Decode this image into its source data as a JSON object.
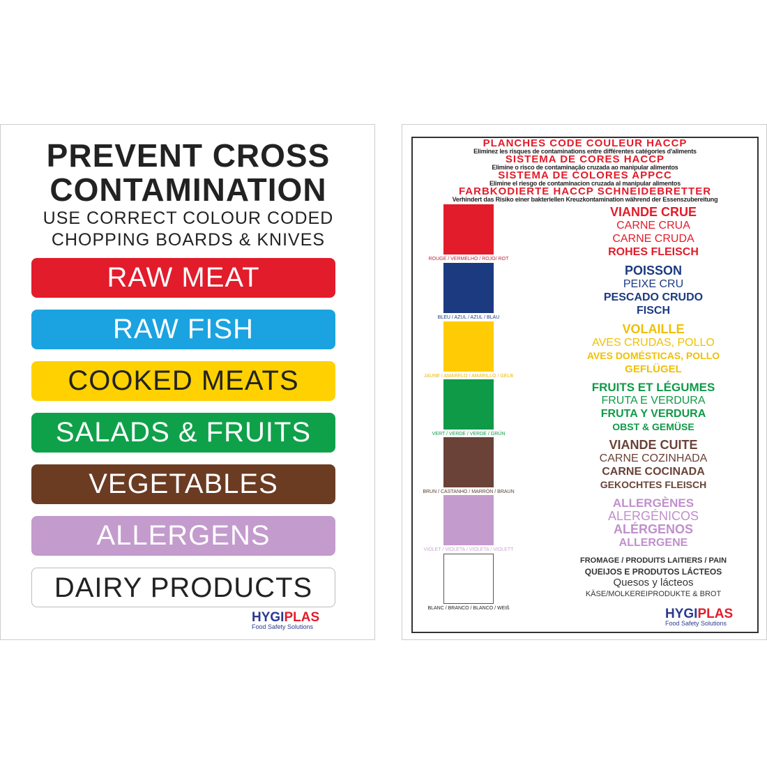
{
  "left": {
    "title_lines": [
      "PREVENT CROSS",
      "CONTAMINATION"
    ],
    "subtitle_lines": [
      "USE CORRECT COLOUR CODED",
      "CHOPPING BOARDS & KNIVES"
    ],
    "bars": [
      {
        "label": "RAW MEAT",
        "color": "#e21c2a",
        "text_color": "#ffffff"
      },
      {
        "label": "RAW FISH",
        "color": "#1aa3e0",
        "text_color": "#ffffff"
      },
      {
        "label": "COOKED MEATS",
        "color": "#ffd100",
        "text_color": "#222222"
      },
      {
        "label": "SALADS & FRUITS",
        "color": "#0fa14a",
        "text_color": "#ffffff"
      },
      {
        "label": "VEGETABLES",
        "color": "#6b3b22",
        "text_color": "#ffffff"
      },
      {
        "label": "ALLERGENS",
        "color": "#c39bcd",
        "text_color": "#ffffff"
      },
      {
        "label": "DAIRY PRODUCTS",
        "color": "#ffffff",
        "text_color": "#222222"
      }
    ],
    "logo": {
      "a": "HYGI",
      "b": "PLAS",
      "tagline": "Food Safety Solutions"
    }
  },
  "right": {
    "headers": [
      {
        "title": "PLANCHES CODE COULEUR HACCP",
        "sub": "Eliminez les risques de contaminations entre différentes catégories d'aliments"
      },
      {
        "title": "SISTEMA DE CORES HACCP",
        "sub": "Elimine o risco de contaminação cruzada ao manipular alimentos"
      },
      {
        "title": "SISTEMA DE COLORES APPCC",
        "sub": "Elimine el riesgo de contaminacion cruzada al manipular alimentos"
      },
      {
        "title": "FARBKODIERTE HACCP SCHNEIDEBRETTER",
        "sub": "Verhindert das Risiko einer bakteriellen Kreuzkontamination während der Essenszubereitung"
      }
    ],
    "swatches": [
      {
        "color": "#e21c2a",
        "label": "ROUGE / VERMELHO / ROJO/ ROT",
        "label_color": "#c0243a",
        "lines": [
          "VIANDE CRUE",
          "CARNE CRUA",
          "CARNE CRUDA",
          "ROHES FLEISCH"
        ]
      },
      {
        "color": "#1b3a80",
        "label": "BLEU / AZUL / AZUL / BLAU",
        "label_color": "#1b3a80",
        "lines": [
          "POISSON",
          "PEIXE CRU",
          "PESCADO CRUDO",
          "FISCH"
        ]
      },
      {
        "color": "#ffcb05",
        "label": "JAUNE / AMARELO / AMARILLO / GELB",
        "label_color": "#e8b800",
        "lines": [
          "VOLAILLE",
          "AVES CRUDAS, POLLO",
          "AVES DOMÉSTICAS, POLLO",
          "GEFLÜGEL"
        ]
      },
      {
        "color": "#0f9a47",
        "label": "VERT / VERDE / VERDE / GRÜN",
        "label_color": "#0f9a47",
        "lines": [
          "FRUITS ET LÉGUMES",
          "FRUTA E VERDURA",
          "FRUTA Y VERDURA",
          "OBST & GEMÜSE"
        ]
      },
      {
        "color": "#6a4238",
        "label": "BRUN / CASTANHO / MARRÓN / BRAUN",
        "label_color": "#5a3a30",
        "lines": [
          "VIANDE CUITE",
          "CARNE COZINHADA",
          "CARNE COCINADA",
          "GEKOCHTES FLEISCH"
        ]
      },
      {
        "color": "#c39bcd",
        "label": "VIOLET / VIOLETA / VIOLETA / VIOLETT",
        "label_color": "#c9a8d3",
        "lines": [
          "ALLERGÈNES",
          "ALERGÉNICOS",
          "ALÉRGENOS",
          "ALLERGENE"
        ]
      },
      {
        "color": "#ffffff",
        "label": "BLANC / BRANCO / BLANCO / WEIß",
        "label_color": "#222222",
        "lines": [
          "FROMAGE / PRODUITS LAITIERS / PAIN",
          "QUEIJOS E PRODUTOS LÁCTEOS",
          "Quesos y lácteos",
          "KÄSE/MOLKEREIPRODUKTE & BROT"
        ]
      }
    ],
    "logo": {
      "a": "HYGI",
      "b": "PLAS",
      "tagline": "Food Safety Solutions"
    }
  }
}
